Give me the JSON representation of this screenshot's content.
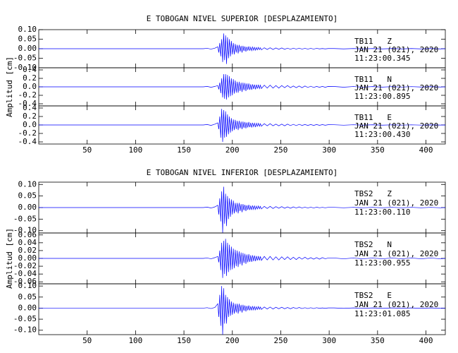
{
  "chart_data": [
    {
      "type": "line",
      "title": "E TOBOGAN NIVEL SUPERIOR [DESPLAZAMIENTO]",
      "ylabel": "Amplitud [cm]",
      "color": "#0000ff",
      "xlim": [
        0,
        420
      ],
      "xticks": [
        50,
        100,
        150,
        200,
        250,
        300,
        350,
        400
      ],
      "x": [
        0,
        170,
        174,
        178,
        182,
        185,
        186,
        187,
        188,
        189,
        190,
        191,
        192,
        193,
        194,
        195,
        196,
        197,
        198,
        199,
        200,
        201,
        202,
        203,
        204,
        205,
        206,
        207,
        208,
        209,
        210,
        211,
        212,
        213,
        214,
        215,
        216,
        217,
        218,
        219,
        220,
        221,
        222,
        223,
        224,
        225,
        226,
        227,
        228,
        229,
        230,
        233,
        236,
        239,
        242,
        245,
        248,
        251,
        254,
        257,
        260,
        263,
        266,
        269,
        272,
        275,
        278,
        281,
        284,
        287,
        290,
        293,
        296,
        299,
        305,
        315,
        325,
        335,
        345,
        355,
        365,
        375,
        385,
        395,
        405,
        415,
        420
      ],
      "panels": [
        {
          "ylim": [
            -0.1,
            0.1
          ],
          "yticks": [
            {
              "value": 0.1,
              "label": "0.10"
            },
            0.05,
            {
              "value": 0,
              "label": "0.00"
            },
            -0.05,
            {
              "value": -0.1,
              "label": "-0.10"
            }
          ],
          "annotation": [
            "TB11   Z",
            "JAN 21 (021), 2020",
            "11:23:00.345"
          ],
          "values": [
            0,
            0,
            0.002,
            -0.002,
            0.003,
            0.01,
            -0.02,
            0.03,
            -0.04,
            0.05,
            -0.07,
            0.08,
            -0.06,
            0.07,
            -0.08,
            0.06,
            -0.05,
            0.05,
            -0.04,
            0.04,
            -0.03,
            0.03,
            -0.03,
            0.025,
            -0.02,
            0.02,
            -0.025,
            0.02,
            -0.015,
            0.015,
            -0.02,
            0.015,
            -0.012,
            0.012,
            -0.015,
            0.01,
            -0.01,
            0.012,
            -0.01,
            0.008,
            -0.01,
            0.009,
            -0.008,
            0.007,
            -0.008,
            0.006,
            -0.006,
            0.007,
            -0.005,
            0.005,
            -0.006,
            0.005,
            -0.004,
            0.005,
            -0.004,
            0.004,
            -0.003,
            0.004,
            -0.003,
            0.003,
            -0.003,
            0.003,
            -0.002,
            0.003,
            -0.002,
            0.002,
            -0.002,
            0.002,
            -0.002,
            0.002,
            -0.001,
            0.001,
            -0.001,
            0.001,
            0.001,
            -0.001,
            0.001,
            -0.001,
            0.001,
            -0.001,
            0.001,
            -0.001,
            0.001,
            -0.001,
            0.001,
            -0.001,
            0
          ]
        },
        {
          "ylim": [
            -0.45,
            0.45
          ],
          "yticks": [
            0.4,
            0.2,
            {
              "value": 0,
              "label": "0.0"
            },
            -0.2,
            -0.4
          ],
          "annotation": [
            "TB11   N",
            "JAN 21 (021), 2020",
            "11:23:00.895"
          ],
          "values": [
            0,
            0,
            0.01,
            -0.01,
            0.01,
            0.03,
            -0.06,
            0.1,
            -0.15,
            0.2,
            -0.25,
            0.3,
            -0.28,
            0.3,
            -0.3,
            0.28,
            -0.25,
            0.25,
            -0.22,
            0.2,
            -0.2,
            0.18,
            -0.16,
            0.15,
            -0.14,
            0.12,
            -0.14,
            0.12,
            -0.1,
            0.1,
            -0.12,
            0.1,
            -0.08,
            0.09,
            -0.1,
            0.08,
            -0.07,
            0.08,
            -0.07,
            0.06,
            -0.07,
            0.06,
            -0.05,
            0.05,
            -0.06,
            0.05,
            -0.04,
            0.05,
            -0.04,
            0.04,
            -0.04,
            0.04,
            -0.03,
            0.04,
            -0.03,
            0.03,
            -0.03,
            0.03,
            -0.02,
            0.03,
            -0.02,
            0.02,
            -0.02,
            0.02,
            -0.02,
            0.02,
            -0.015,
            0.015,
            -0.015,
            0.01,
            -0.01,
            0.01,
            -0.01,
            0.01,
            0.008,
            -0.008,
            0.007,
            -0.007,
            0.006,
            -0.006,
            0.005,
            -0.005,
            0.005,
            -0.004,
            0.004,
            -0.004,
            0
          ]
        },
        {
          "ylim": [
            -0.45,
            0.45
          ],
          "yticks": [
            0.4,
            0.2,
            {
              "value": 0,
              "label": "0.0"
            },
            -0.2,
            -0.4
          ],
          "annotation": [
            "TB11   E",
            "JAN 21 (021), 2020",
            "11:23:00.430"
          ],
          "values": [
            0,
            0,
            0.01,
            -0.01,
            0.02,
            0.05,
            -0.1,
            0.2,
            -0.3,
            0.38,
            -0.4,
            0.35,
            -0.3,
            0.32,
            -0.28,
            0.25,
            -0.22,
            0.2,
            -0.18,
            0.16,
            -0.15,
            0.13,
            -0.12,
            0.12,
            -0.1,
            0.1,
            -0.12,
            0.1,
            -0.08,
            0.08,
            -0.1,
            0.08,
            -0.07,
            0.07,
            -0.08,
            0.06,
            -0.06,
            0.07,
            -0.05,
            0.05,
            -0.06,
            0.05,
            -0.04,
            0.04,
            -0.05,
            0.04,
            -0.03,
            0.04,
            -0.03,
            0.03,
            -0.03,
            0.03,
            -0.02,
            0.03,
            -0.02,
            0.02,
            -0.02,
            0.02,
            -0.02,
            0.02,
            -0.015,
            0.015,
            -0.015,
            0.015,
            -0.01,
            0.01,
            -0.01,
            0.01,
            -0.01,
            0.01,
            -0.008,
            0.008,
            -0.006,
            0.006,
            0.005,
            -0.005,
            0.005,
            -0.004,
            0.004,
            -0.004,
            0.003,
            -0.003,
            0.003,
            -0.003,
            0.002,
            -0.002,
            0
          ]
        }
      ]
    },
    {
      "type": "line",
      "title": "E TOBOGAN NIVEL INFERIOR [DESPLAZAMIENTO]",
      "ylabel": "Amplitud [cm]",
      "color": "#0000ff",
      "xlim": [
        0,
        420
      ],
      "xticks": [
        50,
        100,
        150,
        200,
        250,
        300,
        350,
        400
      ],
      "x": [
        0,
        170,
        174,
        178,
        182,
        185,
        186,
        187,
        188,
        189,
        190,
        191,
        192,
        193,
        194,
        195,
        196,
        197,
        198,
        199,
        200,
        201,
        202,
        203,
        204,
        205,
        206,
        207,
        208,
        209,
        210,
        211,
        212,
        213,
        214,
        215,
        216,
        217,
        218,
        219,
        220,
        221,
        222,
        223,
        224,
        225,
        226,
        227,
        228,
        229,
        230,
        233,
        236,
        239,
        242,
        245,
        248,
        251,
        254,
        257,
        260,
        263,
        266,
        269,
        272,
        275,
        278,
        281,
        284,
        287,
        290,
        293,
        296,
        299,
        305,
        315,
        325,
        335,
        345,
        355,
        365,
        375,
        385,
        395,
        405,
        415,
        420
      ],
      "panels": [
        {
          "ylim": [
            -0.11,
            0.11
          ],
          "yticks": [
            {
              "value": 0.1,
              "label": "0.10"
            },
            0.05,
            {
              "value": 0,
              "label": "0.00"
            },
            -0.05,
            {
              "value": -0.1,
              "label": "-0.10"
            }
          ],
          "annotation": [
            "TBS2   Z",
            "JAN 21 (021), 2020",
            "11:23:00.110"
          ],
          "values": [
            0,
            0,
            0.002,
            -0.002,
            0.003,
            0.01,
            -0.03,
            0.04,
            -0.06,
            0.07,
            -0.11,
            0.09,
            -0.07,
            0.06,
            -0.08,
            0.05,
            -0.05,
            0.04,
            -0.04,
            0.035,
            -0.03,
            0.03,
            -0.025,
            0.02,
            -0.02,
            0.02,
            -0.025,
            0.02,
            -0.015,
            0.015,
            -0.02,
            0.015,
            -0.012,
            0.012,
            -0.015,
            0.01,
            -0.01,
            0.012,
            -0.01,
            0.008,
            -0.01,
            0.009,
            -0.008,
            0.007,
            -0.008,
            0.006,
            -0.006,
            0.007,
            -0.005,
            0.005,
            -0.006,
            0.005,
            -0.004,
            0.005,
            -0.004,
            0.004,
            -0.003,
            0.004,
            -0.003,
            0.003,
            -0.003,
            0.003,
            -0.002,
            0.003,
            -0.002,
            0.002,
            -0.002,
            0.002,
            -0.002,
            0.002,
            -0.001,
            0.001,
            -0.001,
            0.001,
            0.001,
            -0.001,
            0.001,
            -0.001,
            0.001,
            -0.001,
            0.001,
            -0.001,
            0.001,
            -0.001,
            0.001,
            -0.001,
            0
          ]
        },
        {
          "ylim": [
            -0.065,
            0.065
          ],
          "yticks": [
            0.06,
            0.04,
            0.02,
            {
              "value": 0,
              "label": "0.00"
            },
            -0.02,
            -0.04,
            -0.06
          ],
          "annotation": [
            "TBS2   N",
            "JAN 21 (021), 2020",
            "11:23:00.955"
          ],
          "values": [
            0,
            0,
            0.001,
            -0.001,
            0.002,
            0.005,
            -0.01,
            0.02,
            -0.03,
            0.04,
            -0.05,
            0.045,
            -0.04,
            0.05,
            -0.045,
            0.04,
            -0.035,
            0.035,
            -0.03,
            0.03,
            -0.028,
            0.025,
            -0.025,
            0.022,
            -0.02,
            0.02,
            -0.022,
            0.018,
            -0.015,
            0.015,
            -0.018,
            0.014,
            -0.012,
            0.012,
            -0.014,
            0.01,
            -0.01,
            0.011,
            -0.009,
            0.008,
            -0.009,
            0.008,
            -0.007,
            0.007,
            -0.007,
            0.006,
            -0.005,
            0.006,
            -0.005,
            0.005,
            -0.005,
            0.005,
            -0.004,
            0.005,
            -0.004,
            0.004,
            -0.004,
            0.004,
            -0.003,
            0.004,
            -0.003,
            0.003,
            -0.003,
            0.003,
            -0.002,
            0.003,
            -0.002,
            0.002,
            -0.002,
            0.002,
            -0.002,
            0.002,
            -0.001,
            0.001,
            0.001,
            -0.001,
            0.001,
            -0.001,
            0.001,
            -0.001,
            0.001,
            -0.001,
            0.001,
            -0.001,
            0.001,
            -0.001,
            0
          ]
        },
        {
          "ylim": [
            -0.12,
            0.11
          ],
          "yticks": [
            {
              "value": 0.1,
              "label": "0.10"
            },
            0.05,
            {
              "value": 0,
              "label": "0.00"
            },
            -0.05,
            {
              "value": -0.1,
              "label": "-0.10"
            }
          ],
          "annotation": [
            "TBS2   E",
            "JAN 21 (021), 2020",
            "11:23:01.085"
          ],
          "values": [
            0,
            0,
            0.002,
            -0.002,
            0.003,
            0.02,
            -0.04,
            0.06,
            -0.08,
            0.1,
            -0.12,
            0.09,
            -0.07,
            0.06,
            -0.07,
            0.05,
            -0.04,
            0.04,
            -0.035,
            0.03,
            -0.03,
            0.025,
            -0.025,
            0.02,
            -0.02,
            0.02,
            -0.025,
            0.02,
            -0.015,
            0.015,
            -0.02,
            0.015,
            -0.012,
            0.012,
            -0.015,
            0.01,
            -0.01,
            0.012,
            -0.01,
            0.008,
            -0.01,
            0.009,
            -0.008,
            0.007,
            -0.008,
            0.006,
            -0.006,
            0.007,
            -0.005,
            0.005,
            -0.006,
            0.005,
            -0.004,
            0.005,
            -0.004,
            0.004,
            -0.003,
            0.004,
            -0.003,
            0.003,
            -0.003,
            0.003,
            -0.002,
            0.003,
            -0.002,
            0.002,
            -0.002,
            0.002,
            -0.002,
            0.002,
            -0.001,
            0.001,
            -0.001,
            0.001,
            0.001,
            -0.001,
            0.001,
            -0.001,
            0.001,
            -0.001,
            0.001,
            -0.001,
            0.001,
            -0.001,
            0.001,
            -0.001,
            0
          ]
        }
      ]
    }
  ]
}
